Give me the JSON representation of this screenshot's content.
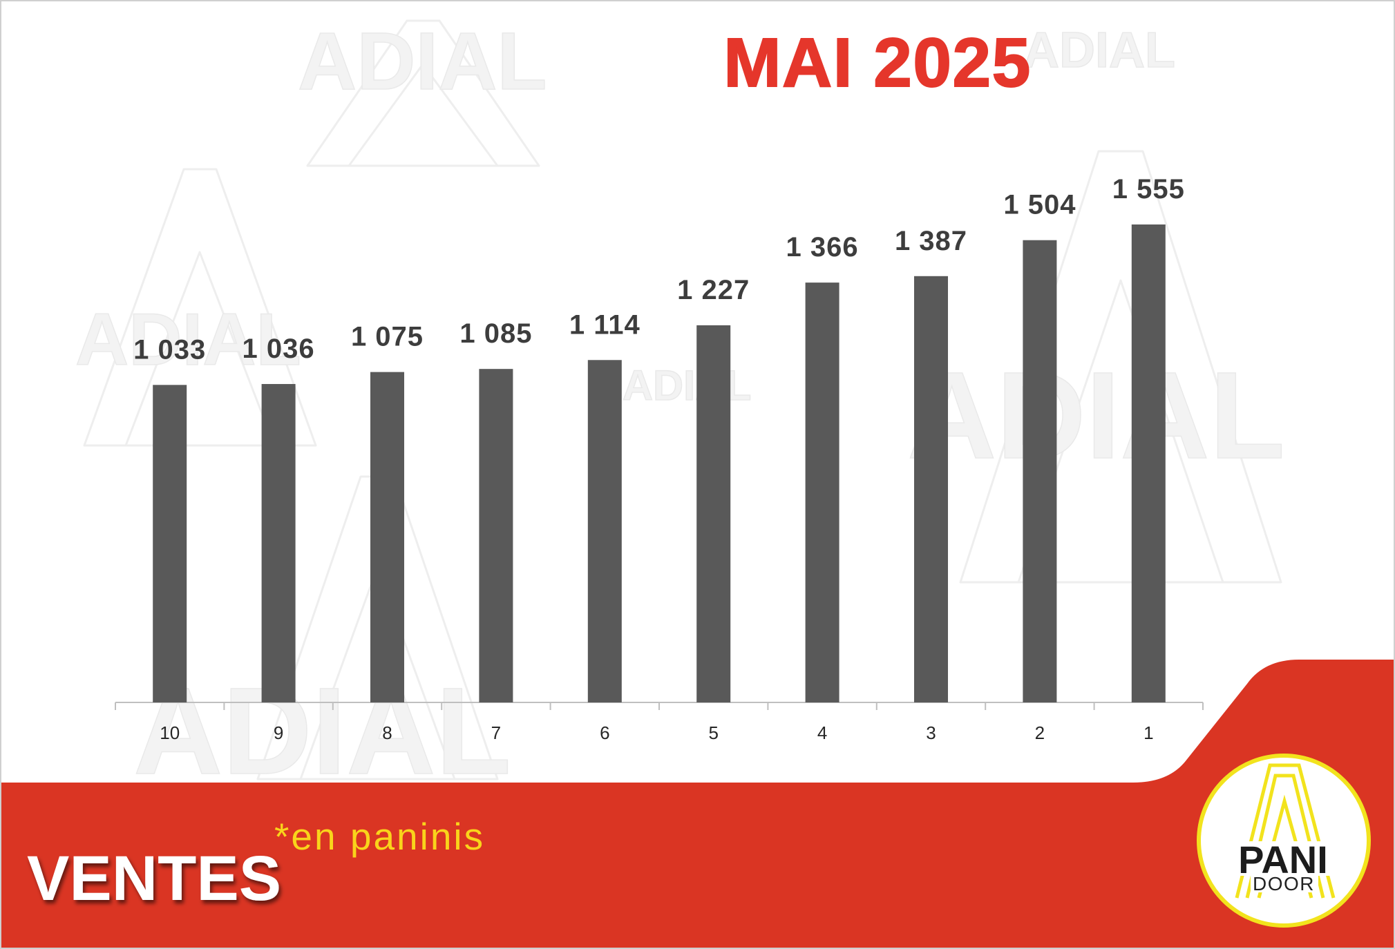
{
  "chart_data": {
    "type": "bar",
    "title": "MAI 2025",
    "categories": [
      "10",
      "9",
      "8",
      "7",
      "6",
      "5",
      "4",
      "3",
      "2",
      "1"
    ],
    "values": [
      1033,
      1036,
      1075,
      1085,
      1114,
      1227,
      1366,
      1387,
      1504,
      1555
    ],
    "data_labels": [
      "1 033",
      "1 036",
      "1 075",
      "1 085",
      "1 114",
      "1 227",
      "1 366",
      "1 387",
      "1 504",
      "1 555"
    ],
    "ylim": [
      0,
      2000
    ],
    "grid": false,
    "legend": "none"
  },
  "footer": {
    "label": "VENTES",
    "note": "*en paninis"
  },
  "logo": {
    "line1": "PANI",
    "line2": "DOOR",
    "icon": "letter-a-outline-icon"
  },
  "watermark": {
    "text": "ADIAL",
    "icon": "letter-a-outline-icon"
  },
  "colors": {
    "title": "#e5362b",
    "bars": "#595959",
    "band": "#da3523",
    "note": "#f9d41b",
    "logo_ring": "#f2e31d",
    "axis": "#bfbfbf"
  }
}
